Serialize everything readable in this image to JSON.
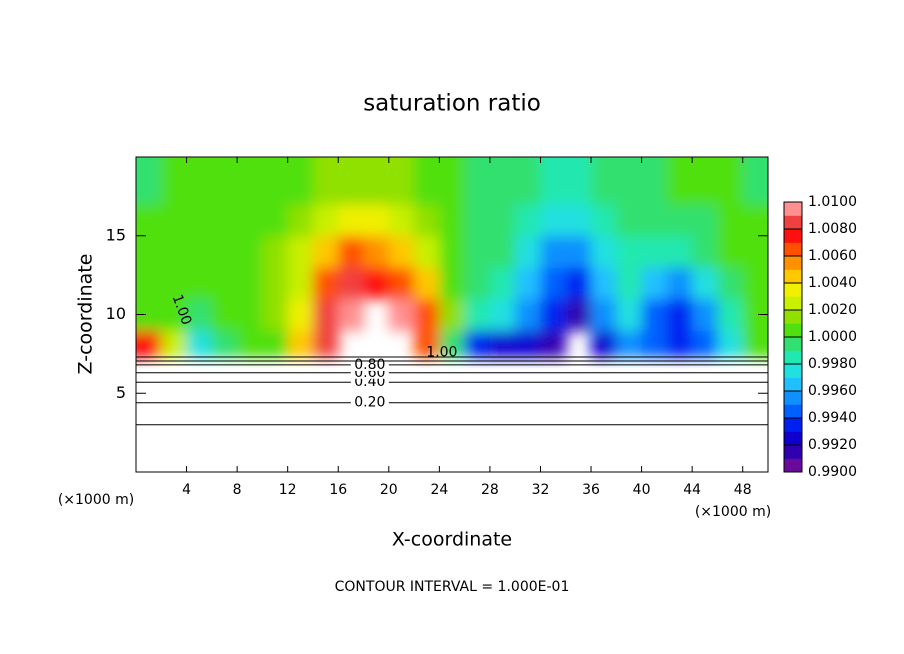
{
  "chart_data": {
    "type": "contour",
    "title": "saturation ratio",
    "xlabel": "X-coordinate",
    "ylabel": "Z-coordinate",
    "x_unit_left": "(×1000 m)",
    "x_unit_right": "(×1000 m)",
    "footnote": "CONTOUR INTERVAL = 1.000E-01",
    "xlim": [
      0,
      50
    ],
    "ylim": [
      0,
      20
    ],
    "xticks": [
      4,
      8,
      12,
      16,
      20,
      24,
      28,
      32,
      36,
      40,
      44,
      48
    ],
    "yticks": [
      5,
      10,
      15
    ],
    "field": {
      "x": [
        1,
        3,
        5,
        7,
        9,
        11,
        13,
        15,
        17,
        19,
        21,
        23,
        25,
        27,
        29,
        31,
        33,
        35,
        37,
        39,
        41,
        43,
        45,
        47,
        49
      ],
      "z_edges": [
        7.3,
        9,
        11,
        13,
        15,
        17,
        20
      ],
      "values": [
        [
          1.007,
          1.002,
          0.997,
          0.999,
          1.0,
          1.0,
          1.004,
          1.008,
          null,
          null,
          null,
          1.006,
          0.999,
          0.993,
          0.992,
          0.992,
          0.991,
          null,
          0.992,
          0.995,
          0.994,
          0.993,
          0.994,
          0.997,
          1.0
        ],
        [
          1.0,
          1.0,
          0.999,
          1.0,
          1.0,
          1.001,
          1.003,
          1.008,
          1.009,
          null,
          1.009,
          1.006,
          1.001,
          0.998,
          0.997,
          0.995,
          0.993,
          0.991,
          0.995,
          0.997,
          0.994,
          0.993,
          0.995,
          0.998,
          1.0
        ],
        [
          1.0,
          1.0,
          1.0,
          1.0,
          1.0,
          1.001,
          1.002,
          1.006,
          1.008,
          1.007,
          1.006,
          1.004,
          1.0,
          0.999,
          0.998,
          0.996,
          0.994,
          0.993,
          0.996,
          0.998,
          0.996,
          0.995,
          0.997,
          0.999,
          1.0
        ],
        [
          1.0,
          1.0,
          1.0,
          1.0,
          1.0,
          1.001,
          1.002,
          1.004,
          1.006,
          1.005,
          1.004,
          1.002,
          1.0,
          0.999,
          0.999,
          0.997,
          0.995,
          0.995,
          0.997,
          0.998,
          0.998,
          0.998,
          0.999,
          1.0,
          1.0
        ],
        [
          1.0,
          1.0,
          1.0,
          1.0,
          1.0,
          1.0,
          1.001,
          1.002,
          1.003,
          1.003,
          1.002,
          1.001,
          1.0,
          0.999,
          0.999,
          0.998,
          0.997,
          0.997,
          0.998,
          0.999,
          0.999,
          0.999,
          0.999,
          1.0,
          1.0
        ],
        [
          0.999,
          1.0,
          1.0,
          1.0,
          1.0,
          1.0,
          1.0,
          1.001,
          1.001,
          1.001,
          1.001,
          1.0,
          1.0,
          0.999,
          0.999,
          0.999,
          0.998,
          0.998,
          0.999,
          0.999,
          0.999,
          1.0,
          1.0,
          1.0,
          0.999
        ]
      ]
    },
    "contours": [
      {
        "label": null,
        "z": 3.0
      },
      {
        "label": "0.20",
        "z": 4.4
      },
      {
        "label": "0.40",
        "z": 5.7
      },
      {
        "label": "0.60",
        "z": 6.3
      },
      {
        "label": "0.80",
        "z": 6.8
      },
      {
        "label": null,
        "z": 7.05
      },
      {
        "label": null,
        "z": 7.3
      }
    ],
    "annotations": [
      {
        "text": "1.00",
        "x": 3.6,
        "z": 10.3
      },
      {
        "text": "1.00",
        "x": 24.2,
        "z": 7.6
      }
    ],
    "colorbar": {
      "clim": [
        0.99,
        1.01
      ],
      "step": 0.001,
      "colors": [
        "#6a0a9a",
        "#3000b0",
        "#1000d0",
        "#0020f0",
        "#0060ff",
        "#1090ff",
        "#20c0ff",
        "#20e0e0",
        "#20e8b0",
        "#30e070",
        "#50e010",
        "#90e000",
        "#c8f000",
        "#f0f000",
        "#ffc800",
        "#ff9000",
        "#ff5000",
        "#ff1010",
        "#f04040",
        "#ff9090"
      ],
      "ticks": [
        {
          "value": 0.99,
          "label": "0.9900"
        },
        {
          "value": 0.992,
          "label": "0.9920"
        },
        {
          "value": 0.994,
          "label": "0.9940"
        },
        {
          "value": 0.996,
          "label": "0.9960"
        },
        {
          "value": 0.998,
          "label": "0.9980"
        },
        {
          "value": 1.0,
          "label": "1.0000"
        },
        {
          "value": 1.002,
          "label": "1.0020"
        },
        {
          "value": 1.004,
          "label": "1.0040"
        },
        {
          "value": 1.006,
          "label": "1.0060"
        },
        {
          "value": 1.008,
          "label": "1.0080"
        },
        {
          "value": 1.01,
          "label": "1.0100"
        }
      ]
    }
  }
}
